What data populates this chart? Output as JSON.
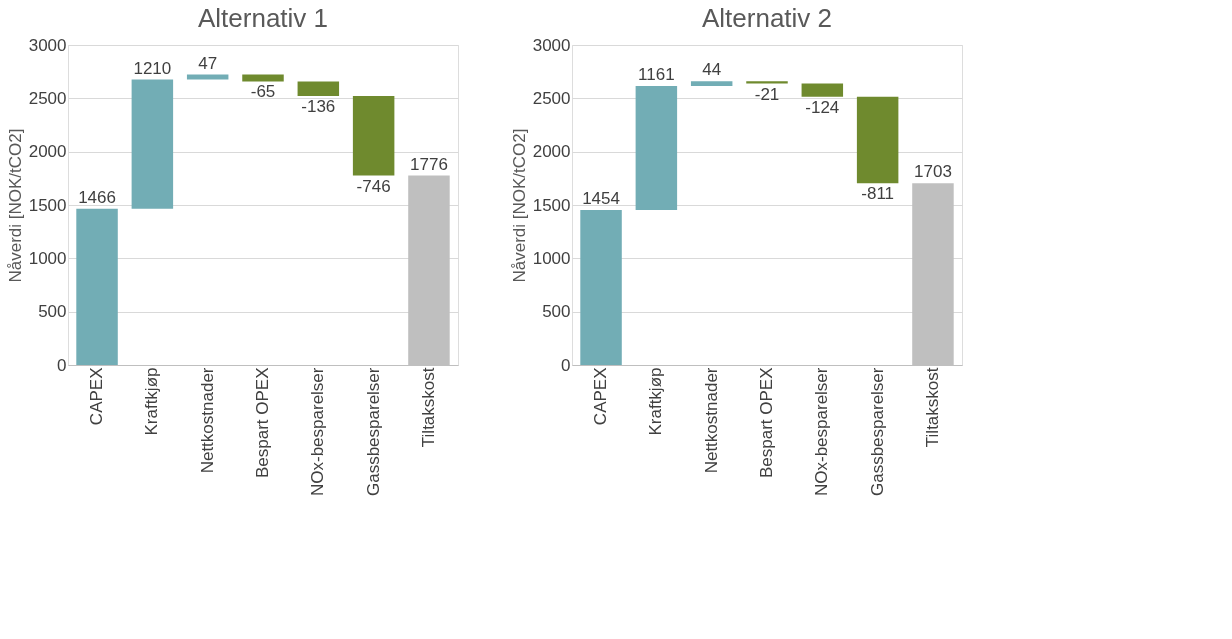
{
  "chart_data": [
    {
      "type": "bar",
      "title": "Alternativ 1",
      "ylabel": "Nåverdi [NOK/tCO2]",
      "categories": [
        "CAPEX",
        "Kraftkjøp",
        "Nettkostnader",
        "Bespart OPEX",
        "NOx-besparelser",
        "Gassbesparelser",
        "Tiltakskost"
      ],
      "values": [
        1466,
        1210,
        47,
        -65,
        -136,
        -746,
        1776
      ],
      "base": [
        0,
        1466,
        2676,
        2723,
        2658,
        2522,
        0
      ],
      "colors": [
        "#72adb5",
        "#72adb5",
        "#72adb5",
        "#6f8a2e",
        "#6f8a2e",
        "#6f8a2e",
        "#bfbfbf"
      ],
      "ylim": [
        0,
        3000
      ],
      "yticks": [
        0,
        500,
        1000,
        1500,
        2000,
        2500,
        3000
      ],
      "grid": "y",
      "data_labels": true
    },
    {
      "type": "bar",
      "title": "Alternativ 2",
      "ylabel": "Nåverdi [NOK/tCO2]",
      "categories": [
        "CAPEX",
        "Kraftkjøp",
        "Nettkostnader",
        "Bespart OPEX",
        "NOx-besparelser",
        "Gassbesparelser",
        "Tiltakskost"
      ],
      "values": [
        1454,
        1161,
        44,
        -21,
        -124,
        -811,
        1703
      ],
      "base": [
        0,
        1454,
        2615,
        2659,
        2638,
        2514,
        0
      ],
      "colors": [
        "#72adb5",
        "#72adb5",
        "#72adb5",
        "#6f8a2e",
        "#6f8a2e",
        "#6f8a2e",
        "#bfbfbf"
      ],
      "ylim": [
        0,
        3000
      ],
      "yticks": [
        0,
        500,
        1000,
        1500,
        2000,
        2500,
        3000
      ],
      "grid": "y",
      "data_labels": true
    }
  ]
}
